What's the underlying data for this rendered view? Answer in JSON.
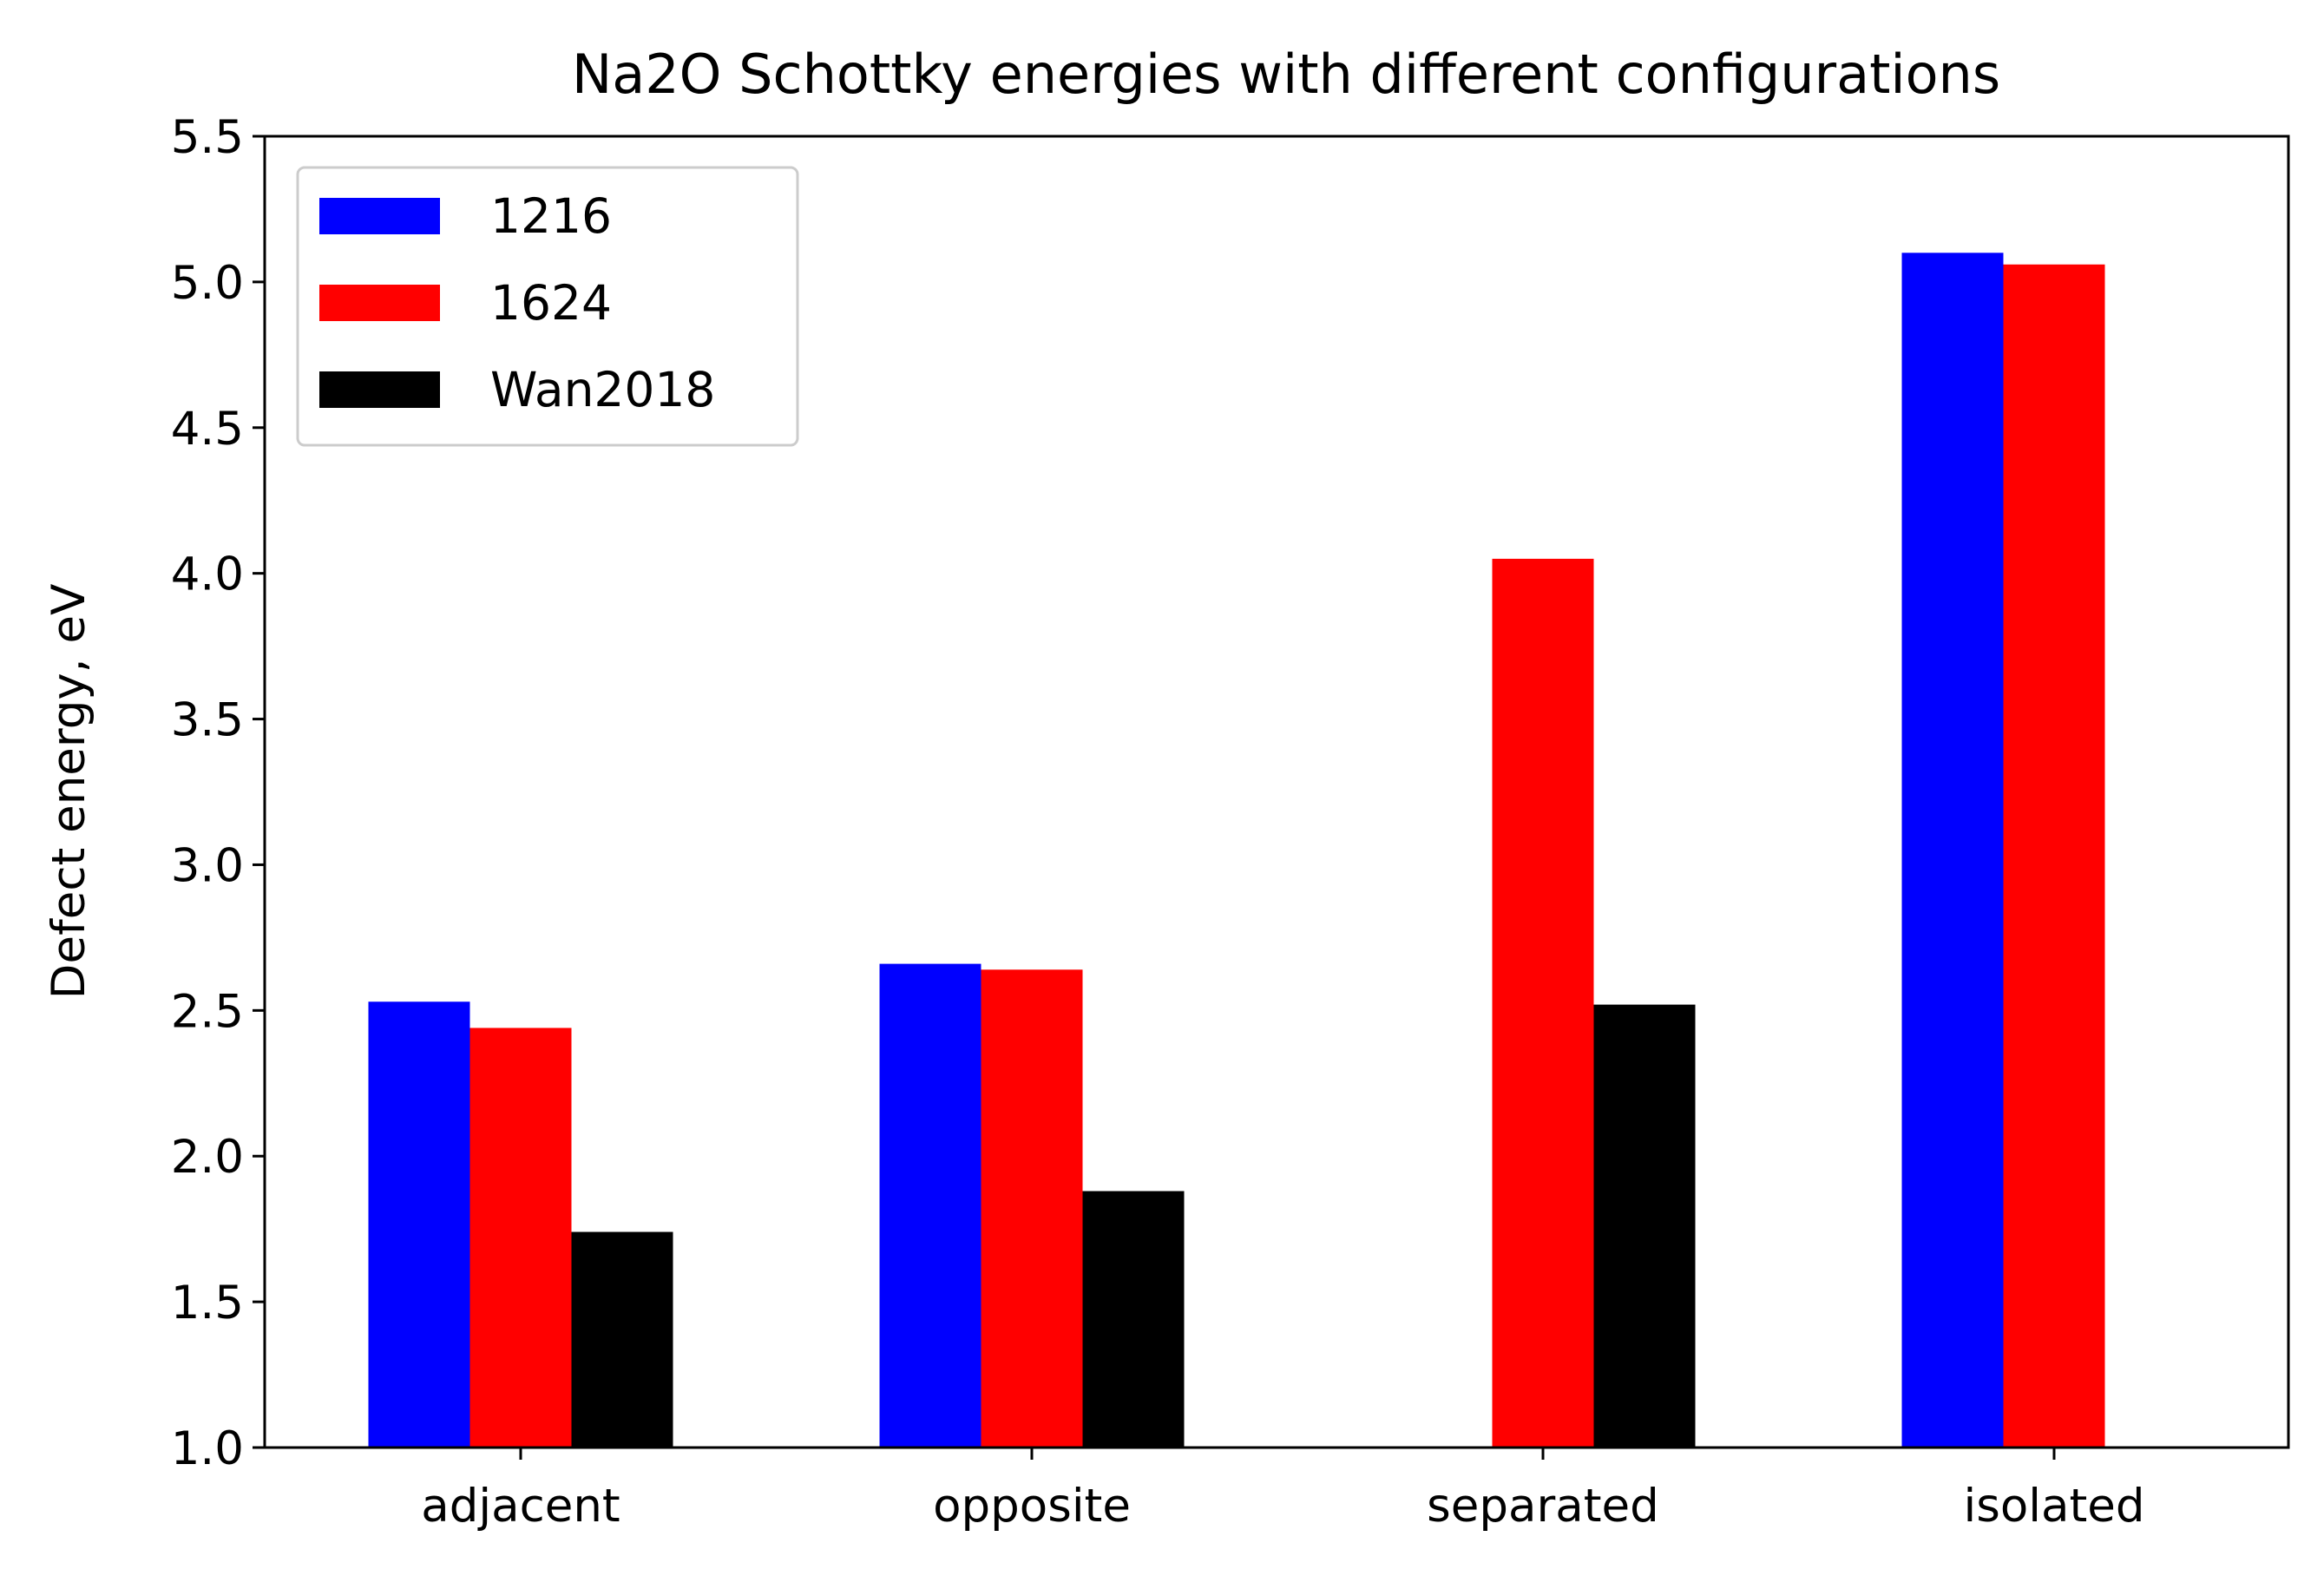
{
  "chart_data": {
    "type": "bar",
    "title": "Na2O Schottky energies with different configurations",
    "xlabel": "",
    "ylabel": "Defect energy, eV",
    "categories": [
      "adjacent",
      "opposite",
      "separated",
      "isolated"
    ],
    "ylim": [
      1.0,
      5.5
    ],
    "yticks": [
      "1.0",
      "1.5",
      "2.0",
      "2.5",
      "3.0",
      "3.5",
      "4.0",
      "4.5",
      "5.0",
      "5.5"
    ],
    "yticks_values": [
      1.0,
      1.5,
      2.0,
      2.5,
      3.0,
      3.5,
      4.0,
      4.5,
      5.0,
      5.5
    ],
    "grid": false,
    "legend_position": "top-left",
    "series": [
      {
        "name": "1216",
        "color": "#0000ff",
        "values": [
          2.53,
          2.66,
          null,
          5.1
        ]
      },
      {
        "name": "1624",
        "color": "#ff0000",
        "values": [
          2.44,
          2.64,
          4.05,
          5.06
        ]
      },
      {
        "name": "Wan2018",
        "color": "#000000",
        "values": [
          1.74,
          1.88,
          2.52,
          null
        ]
      }
    ]
  }
}
